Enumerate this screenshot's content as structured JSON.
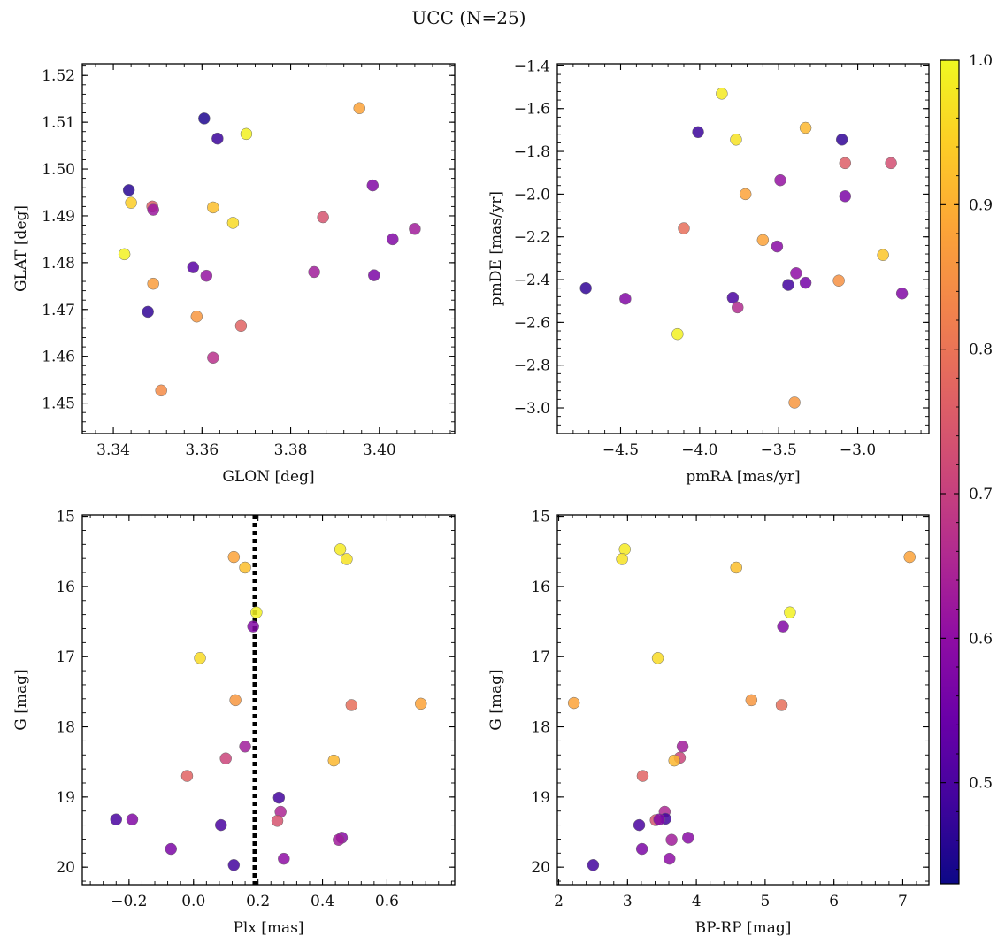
{
  "title": "UCC (N=25)",
  "colorbar": {
    "min": 0.43,
    "max": 1.0,
    "ticks": [
      0.5,
      0.6,
      0.7,
      0.8,
      0.9,
      1.0
    ],
    "tick_labels": [
      "0.5",
      "0.6",
      "0.7",
      "0.8",
      "0.9",
      "1.0"
    ],
    "colormap": "plasma"
  },
  "chart_data": [
    {
      "type": "scatter",
      "xlabel": "GLON [deg]",
      "ylabel": "GLAT [deg]",
      "xlim": [
        3.333,
        3.417
      ],
      "ylim": [
        1.4435,
        1.5225
      ],
      "invert_y": false,
      "xticks": [
        3.34,
        3.36,
        3.38,
        3.4
      ],
      "xtick_labels": [
        "3.34",
        "3.36",
        "3.38",
        "3.40"
      ],
      "yticks": [
        1.45,
        1.46,
        1.47,
        1.48,
        1.49,
        1.5,
        1.51,
        1.52
      ],
      "ytick_labels": [
        "1.45",
        "1.46",
        "1.47",
        "1.48",
        "1.49",
        "1.50",
        "1.51",
        "1.52"
      ],
      "points": [
        {
          "x": 3.3605,
          "y": 1.5108,
          "c": 0.45
        },
        {
          "x": 3.3635,
          "y": 1.5065,
          "c": 0.48
        },
        {
          "x": 3.37,
          "y": 1.5075,
          "c": 0.99
        },
        {
          "x": 3.3955,
          "y": 1.513,
          "c": 0.88
        },
        {
          "x": 3.3435,
          "y": 1.4955,
          "c": 0.46
        },
        {
          "x": 3.344,
          "y": 1.4928,
          "c": 0.94
        },
        {
          "x": 3.3488,
          "y": 1.492,
          "c": 0.76
        },
        {
          "x": 3.349,
          "y": 1.4913,
          "c": 0.62
        },
        {
          "x": 3.3625,
          "y": 1.4918,
          "c": 0.92
        },
        {
          "x": 3.367,
          "y": 1.4885,
          "c": 0.96
        },
        {
          "x": 3.3873,
          "y": 1.4897,
          "c": 0.74
        },
        {
          "x": 3.3985,
          "y": 1.4965,
          "c": 0.58
        },
        {
          "x": 3.3425,
          "y": 1.4818,
          "c": 0.99
        },
        {
          "x": 3.358,
          "y": 1.479,
          "c": 0.52
        },
        {
          "x": 3.361,
          "y": 1.4772,
          "c": 0.61
        },
        {
          "x": 3.3853,
          "y": 1.478,
          "c": 0.63
        },
        {
          "x": 3.3988,
          "y": 1.4773,
          "c": 0.57
        },
        {
          "x": 3.403,
          "y": 1.485,
          "c": 0.58
        },
        {
          "x": 3.408,
          "y": 1.4872,
          "c": 0.63
        },
        {
          "x": 3.349,
          "y": 1.4755,
          "c": 0.87
        },
        {
          "x": 3.3478,
          "y": 1.4695,
          "c": 0.47
        },
        {
          "x": 3.3588,
          "y": 1.4685,
          "c": 0.86
        },
        {
          "x": 3.3688,
          "y": 1.4665,
          "c": 0.77
        },
        {
          "x": 3.3625,
          "y": 1.4597,
          "c": 0.67
        },
        {
          "x": 3.3508,
          "y": 1.4527,
          "c": 0.84
        }
      ]
    },
    {
      "type": "scatter",
      "xlabel": "pmRA [mas/yr]",
      "ylabel": "pmDE [mas/yr]",
      "xlim": [
        -4.9,
        -2.55
      ],
      "ylim": [
        -3.12,
        -1.39
      ],
      "invert_y": false,
      "xticks": [
        -4.5,
        -4.0,
        -3.5,
        -3.0
      ],
      "xtick_labels": [
        "−4.5",
        "−4.0",
        "−3.5",
        "−3.0"
      ],
      "yticks": [
        -3.0,
        -2.8,
        -2.6,
        -2.4,
        -2.2,
        -2.0,
        -1.8,
        -1.6,
        -1.4
      ],
      "ytick_labels": [
        "−3.0",
        "−2.8",
        "−2.6",
        "−2.4",
        "−2.2",
        "−2.0",
        "−1.8",
        "−1.6",
        "−1.4"
      ],
      "points": [
        {
          "x": -3.86,
          "y": -1.53,
          "c": 0.98
        },
        {
          "x": -4.01,
          "y": -1.71,
          "c": 0.48
        },
        {
          "x": -3.77,
          "y": -1.745,
          "c": 0.97
        },
        {
          "x": -3.33,
          "y": -1.69,
          "c": 0.91
        },
        {
          "x": -3.1,
          "y": -1.745,
          "c": 0.47
        },
        {
          "x": -3.08,
          "y": -1.855,
          "c": 0.76
        },
        {
          "x": -2.79,
          "y": -1.855,
          "c": 0.73
        },
        {
          "x": -3.71,
          "y": -2.0,
          "c": 0.88
        },
        {
          "x": -3.49,
          "y": -1.935,
          "c": 0.61
        },
        {
          "x": -3.08,
          "y": -2.01,
          "c": 0.57
        },
        {
          "x": -4.1,
          "y": -2.16,
          "c": 0.79
        },
        {
          "x": -3.6,
          "y": -2.215,
          "c": 0.88
        },
        {
          "x": -3.51,
          "y": -2.245,
          "c": 0.59
        },
        {
          "x": -2.84,
          "y": -2.285,
          "c": 0.93
        },
        {
          "x": -3.39,
          "y": -2.37,
          "c": 0.6
        },
        {
          "x": -3.44,
          "y": -2.425,
          "c": 0.49
        },
        {
          "x": -3.33,
          "y": -2.415,
          "c": 0.56
        },
        {
          "x": -3.12,
          "y": -2.405,
          "c": 0.85
        },
        {
          "x": -4.72,
          "y": -2.44,
          "c": 0.47
        },
        {
          "x": -4.47,
          "y": -2.49,
          "c": 0.58
        },
        {
          "x": -3.79,
          "y": -2.485,
          "c": 0.5
        },
        {
          "x": -3.76,
          "y": -2.53,
          "c": 0.66
        },
        {
          "x": -2.72,
          "y": -2.465,
          "c": 0.58
        },
        {
          "x": -4.14,
          "y": -2.655,
          "c": 0.99
        },
        {
          "x": -3.4,
          "y": -2.975,
          "c": 0.86
        }
      ]
    },
    {
      "type": "scatter",
      "xlabel": "Plx [mas]",
      "ylabel": "G [mag]",
      "xlim": [
        -0.345,
        0.81
      ],
      "ylim": [
        20.25,
        14.98
      ],
      "invert_y": true,
      "vline": {
        "x": 0.19,
        "style": "dotted"
      },
      "xticks": [
        -0.2,
        0.0,
        0.2,
        0.4,
        0.6
      ],
      "xtick_labels": [
        "−0.2",
        "0.0",
        "0.2",
        "0.4",
        "0.6"
      ],
      "yticks": [
        15,
        16,
        17,
        18,
        19,
        20
      ],
      "ytick_labels": [
        "15",
        "16",
        "17",
        "18",
        "19",
        "20"
      ],
      "points": [
        {
          "x": 0.455,
          "y": 15.47,
          "c": 0.98
        },
        {
          "x": 0.475,
          "y": 15.61,
          "c": 0.97
        },
        {
          "x": 0.125,
          "y": 15.58,
          "c": 0.88
        },
        {
          "x": 0.16,
          "y": 15.73,
          "c": 0.92
        },
        {
          "x": 0.195,
          "y": 16.37,
          "c": 0.99
        },
        {
          "x": 0.185,
          "y": 16.57,
          "c": 0.58
        },
        {
          "x": 0.02,
          "y": 17.02,
          "c": 0.96
        },
        {
          "x": 0.13,
          "y": 17.62,
          "c": 0.86
        },
        {
          "x": 0.49,
          "y": 17.69,
          "c": 0.79
        },
        {
          "x": 0.705,
          "y": 17.67,
          "c": 0.88
        },
        {
          "x": 0.16,
          "y": 18.28,
          "c": 0.63
        },
        {
          "x": 0.1,
          "y": 18.45,
          "c": 0.71
        },
        {
          "x": 0.435,
          "y": 18.48,
          "c": 0.91
        },
        {
          "x": -0.02,
          "y": 18.7,
          "c": 0.77
        },
        {
          "x": 0.265,
          "y": 19.01,
          "c": 0.49
        },
        {
          "x": 0.27,
          "y": 19.21,
          "c": 0.65
        },
        {
          "x": 0.26,
          "y": 19.34,
          "c": 0.74
        },
        {
          "x": -0.24,
          "y": 19.32,
          "c": 0.5
        },
        {
          "x": -0.19,
          "y": 19.32,
          "c": 0.58
        },
        {
          "x": 0.085,
          "y": 19.4,
          "c": 0.5
        },
        {
          "x": 0.46,
          "y": 19.58,
          "c": 0.59
        },
        {
          "x": 0.45,
          "y": 19.61,
          "c": 0.63
        },
        {
          "x": -0.07,
          "y": 19.74,
          "c": 0.57
        },
        {
          "x": 0.28,
          "y": 19.88,
          "c": 0.6
        },
        {
          "x": 0.125,
          "y": 19.97,
          "c": 0.49
        }
      ]
    },
    {
      "type": "scatter",
      "xlabel": "BP-RP [mag]",
      "ylabel": "G [mag]",
      "xlim": [
        1.98,
        7.38
      ],
      "ylim": [
        20.25,
        14.98
      ],
      "invert_y": true,
      "xticks": [
        2,
        3,
        4,
        5,
        6,
        7
      ],
      "xtick_labels": [
        "2",
        "3",
        "4",
        "5",
        "6",
        "7"
      ],
      "yticks": [
        15,
        16,
        17,
        18,
        19,
        20
      ],
      "ytick_labels": [
        "15",
        "16",
        "17",
        "18",
        "19",
        "20"
      ],
      "points": [
        {
          "x": 2.96,
          "y": 15.47,
          "c": 0.98
        },
        {
          "x": 2.92,
          "y": 15.61,
          "c": 0.97
        },
        {
          "x": 7.1,
          "y": 15.58,
          "c": 0.88
        },
        {
          "x": 4.58,
          "y": 15.73,
          "c": 0.92
        },
        {
          "x": 5.36,
          "y": 16.37,
          "c": 0.99
        },
        {
          "x": 5.26,
          "y": 16.57,
          "c": 0.58
        },
        {
          "x": 3.44,
          "y": 17.02,
          "c": 0.96
        },
        {
          "x": 2.22,
          "y": 17.66,
          "c": 0.88
        },
        {
          "x": 4.8,
          "y": 17.62,
          "c": 0.86
        },
        {
          "x": 5.24,
          "y": 17.69,
          "c": 0.79
        },
        {
          "x": 3.8,
          "y": 18.28,
          "c": 0.63
        },
        {
          "x": 3.76,
          "y": 18.44,
          "c": 0.71
        },
        {
          "x": 3.68,
          "y": 18.48,
          "c": 0.91
        },
        {
          "x": 3.22,
          "y": 18.7,
          "c": 0.77
        },
        {
          "x": 3.54,
          "y": 19.21,
          "c": 0.65
        },
        {
          "x": 3.55,
          "y": 19.31,
          "c": 0.49
        },
        {
          "x": 3.41,
          "y": 19.33,
          "c": 0.74
        },
        {
          "x": 3.46,
          "y": 19.32,
          "c": 0.58
        },
        {
          "x": 3.17,
          "y": 19.4,
          "c": 0.5
        },
        {
          "x": 3.88,
          "y": 19.58,
          "c": 0.59
        },
        {
          "x": 3.64,
          "y": 19.61,
          "c": 0.63
        },
        {
          "x": 3.21,
          "y": 19.74,
          "c": 0.57
        },
        {
          "x": 3.61,
          "y": 19.88,
          "c": 0.6
        },
        {
          "x": 2.5,
          "y": 19.97,
          "c": 0.49
        }
      ]
    }
  ]
}
